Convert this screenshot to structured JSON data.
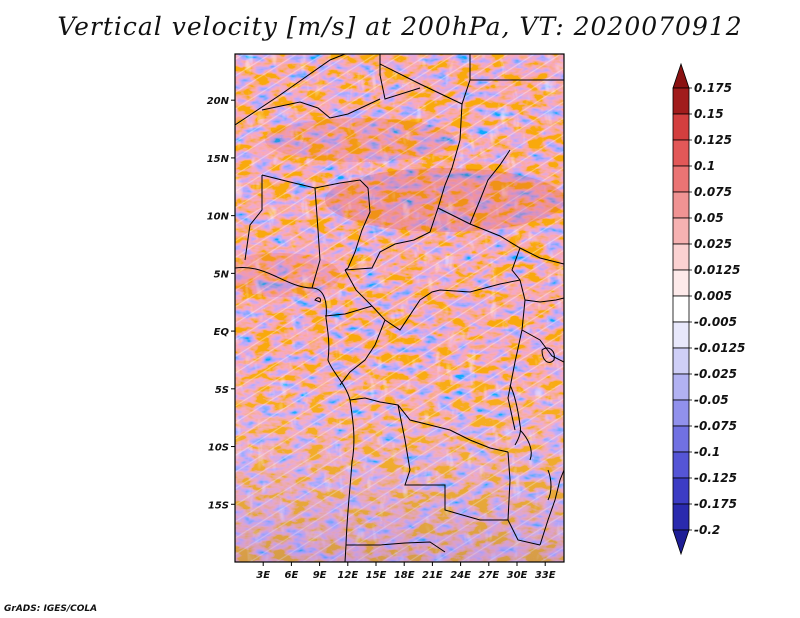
{
  "title": "Vertical velocity [m/s] at 200hPa, VT: 2020070912",
  "footer": "GrADS: IGES/COLA",
  "map": {
    "lon_range": [
      0,
      35
    ],
    "lat_range": [
      -20,
      24
    ],
    "x_ticks": [
      {
        "lon": 3,
        "label": "3E"
      },
      {
        "lon": 6,
        "label": "6E"
      },
      {
        "lon": 9,
        "label": "9E"
      },
      {
        "lon": 12,
        "label": "12E"
      },
      {
        "lon": 15,
        "label": "15E"
      },
      {
        "lon": 18,
        "label": "18E"
      },
      {
        "lon": 21,
        "label": "21E"
      },
      {
        "lon": 24,
        "label": "24E"
      },
      {
        "lon": 27,
        "label": "27E"
      },
      {
        "lon": 30,
        "label": "30E"
      },
      {
        "lon": 33,
        "label": "33E"
      }
    ],
    "y_ticks": [
      {
        "lat": 20,
        "label": "20N"
      },
      {
        "lat": 15,
        "label": "15N"
      },
      {
        "lat": 10,
        "label": "10N"
      },
      {
        "lat": 5,
        "label": "5N"
      },
      {
        "lat": 0,
        "label": "EQ"
      },
      {
        "lat": -5,
        "label": "5S"
      },
      {
        "lat": -10,
        "label": "10S"
      },
      {
        "lat": -15,
        "label": "15S"
      }
    ]
  },
  "colorbar": {
    "levels": [
      {
        "label": "0.175",
        "color": "#a11c1c"
      },
      {
        "label": "0.15",
        "color": "#bd2828"
      },
      {
        "label": "0.125",
        "color": "#d33f3f"
      },
      {
        "label": "0.1",
        "color": "#e25858"
      },
      {
        "label": "0.075",
        "color": "#ea7474"
      },
      {
        "label": "0.05",
        "color": "#f09393"
      },
      {
        "label": "0.025",
        "color": "#f6b2b2"
      },
      {
        "label": "0.0125",
        "color": "#fbd2d2"
      },
      {
        "label": "0.005",
        "color": "#fdeaea"
      },
      {
        "label": "-0.005",
        "color": "#ffffff"
      },
      {
        "label": "-0.0125",
        "color": "#e8e8fb"
      },
      {
        "label": "-0.025",
        "color": "#cfcff7"
      },
      {
        "label": "-0.05",
        "color": "#b2b2f2"
      },
      {
        "label": "-0.075",
        "color": "#9191ec"
      },
      {
        "label": "-0.1",
        "color": "#7171e2"
      },
      {
        "label": "-0.125",
        "color": "#5555d6"
      },
      {
        "label": "-0.175",
        "color": "#3c3cc4"
      },
      {
        "label": "-0.2",
        "color": "#2a2aae"
      }
    ],
    "top_arrow_color": "#8a1212",
    "bottom_arrow_color": "#1e1e96"
  }
}
